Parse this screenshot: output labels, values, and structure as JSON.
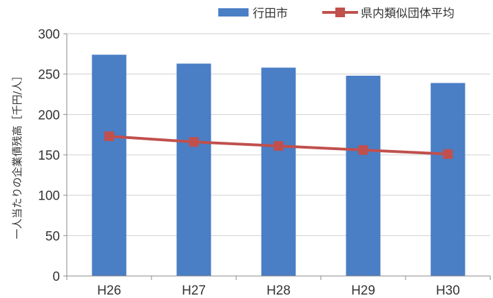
{
  "chart_data": {
    "type": "bar",
    "categories": [
      "H26",
      "H27",
      "H28",
      "H29",
      "H30"
    ],
    "series": [
      {
        "name": "行田市",
        "type": "bar",
        "color": "#4a7ec5",
        "values": [
          274,
          263,
          258,
          248,
          239
        ]
      },
      {
        "name": "県内類似団体平均",
        "type": "line",
        "color": "#c0504d",
        "marker": "square",
        "values": [
          173,
          166,
          161,
          156,
          151
        ]
      }
    ],
    "title": "",
    "xlabel": "",
    "ylabel": "一人当たりの企業債残高［千円/人］",
    "ylim": [
      0,
      300
    ],
    "yticks": [
      0,
      50,
      100,
      150,
      200,
      250,
      300
    ],
    "grid": true,
    "legend": "top-right"
  }
}
